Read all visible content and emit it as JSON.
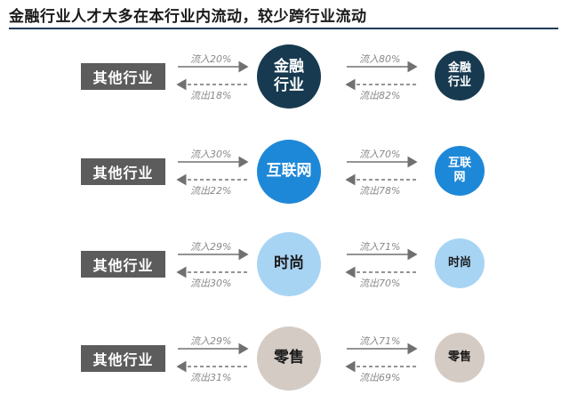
{
  "title": "金融行业人才大多在本行业内流动，较少跨行业流动",
  "rows": [
    {
      "other_label": "其他行业",
      "in_a": "流入20%",
      "out_a": "流出18%",
      "big_label": "金融\n行业",
      "in_b": "流入80%",
      "out_b": "流出82%",
      "small_label": "金融\n行业",
      "color": "#173a50"
    },
    {
      "other_label": "其他行业",
      "in_a": "流入30%",
      "out_a": "流出22%",
      "big_label": "互联网",
      "in_b": "流入70%",
      "out_b": "流出78%",
      "small_label": "互联\n网",
      "color": "#1e88d8"
    },
    {
      "other_label": "其他行业",
      "in_a": "流入29%",
      "out_a": "流出30%",
      "big_label": "时尚",
      "in_b": "流入71%",
      "out_b": "流出70%",
      "small_label": "时尚",
      "color": "#a8d4f4"
    },
    {
      "other_label": "其他行业",
      "in_a": "流入29%",
      "out_a": "流出31%",
      "big_label": "零售",
      "in_b": "流入71%",
      "out_b": "流出69%",
      "small_label": "零售",
      "color": "#d4cbc4"
    }
  ]
}
